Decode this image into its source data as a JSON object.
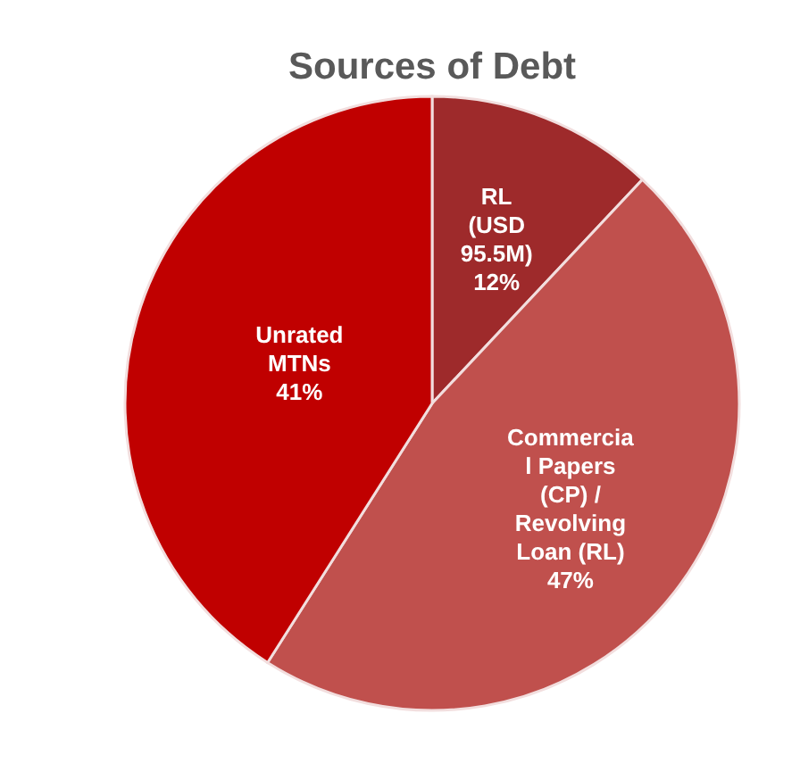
{
  "chart_data": {
    "type": "pie",
    "title": "Sources of Debt",
    "categories": [
      "RL\n(USD\n95.5M)",
      "Commercia\nl Papers\n(CP) /\nRevolving\nLoan (RL)",
      "Unrated\nMTNs"
    ],
    "values": [
      12,
      47,
      41
    ],
    "colors": [
      "#9e2a2b",
      "#c0504d",
      "#c00000"
    ],
    "value_labels": [
      "12%",
      "47%",
      "41%"
    ]
  }
}
